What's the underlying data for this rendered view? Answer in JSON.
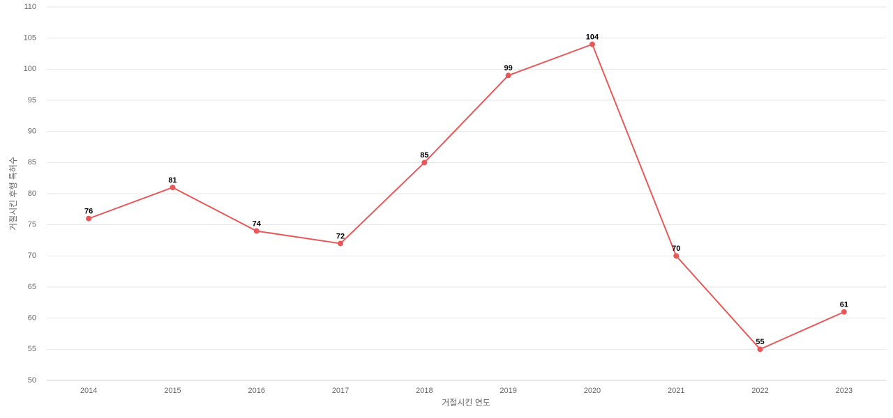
{
  "chart_data": {
    "type": "line",
    "x_label": "거절시킨 연도",
    "y_label": "거절시킨 후행 특허수",
    "categories": [
      "2014",
      "2015",
      "2016",
      "2017",
      "2018",
      "2019",
      "2020",
      "2021",
      "2022",
      "2023"
    ],
    "series": [
      {
        "name": "거절시킨 후행 특허수",
        "color": "#e85858",
        "values": [
          76,
          81,
          74,
          72,
          85,
          99,
          104,
          70,
          55,
          61
        ]
      }
    ],
    "ylim": [
      50,
      110
    ],
    "yticks": [
      50,
      55,
      60,
      65,
      70,
      75,
      80,
      85,
      90,
      95,
      100,
      105,
      110
    ],
    "grid": true
  }
}
